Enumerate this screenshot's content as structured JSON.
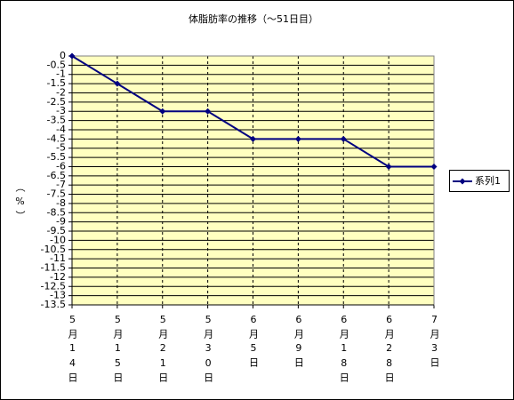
{
  "chart_data": {
    "type": "line",
    "title": "体脂肪率の推移（～51日目）",
    "y_label": "（%）",
    "categories": [
      "5月14日",
      "5月15日",
      "5月21日",
      "5月30日",
      "6月5日",
      "6月9日",
      "6月18日",
      "6月28日",
      "7月3日"
    ],
    "series": [
      {
        "name": "系列1",
        "color": "#000080",
        "values": [
          0,
          -1.5,
          -3,
          -3,
          -4.5,
          -4.5,
          -4.5,
          -6,
          -6
        ]
      }
    ],
    "ylim": [
      -13.5,
      0
    ],
    "yticks": [
      0,
      -0.5,
      -1,
      -1.5,
      -2,
      -2.5,
      -3,
      -3.5,
      -4,
      -4.5,
      -5,
      -5.5,
      -6,
      -6.5,
      -7,
      -7.5,
      -8,
      -8.5,
      -9,
      -9.5,
      -10,
      -10.5,
      -11,
      -11.5,
      -12,
      -12.5,
      -13,
      -13.5
    ],
    "grid": true,
    "legend": "right",
    "plot_background": "#ffffc0"
  }
}
